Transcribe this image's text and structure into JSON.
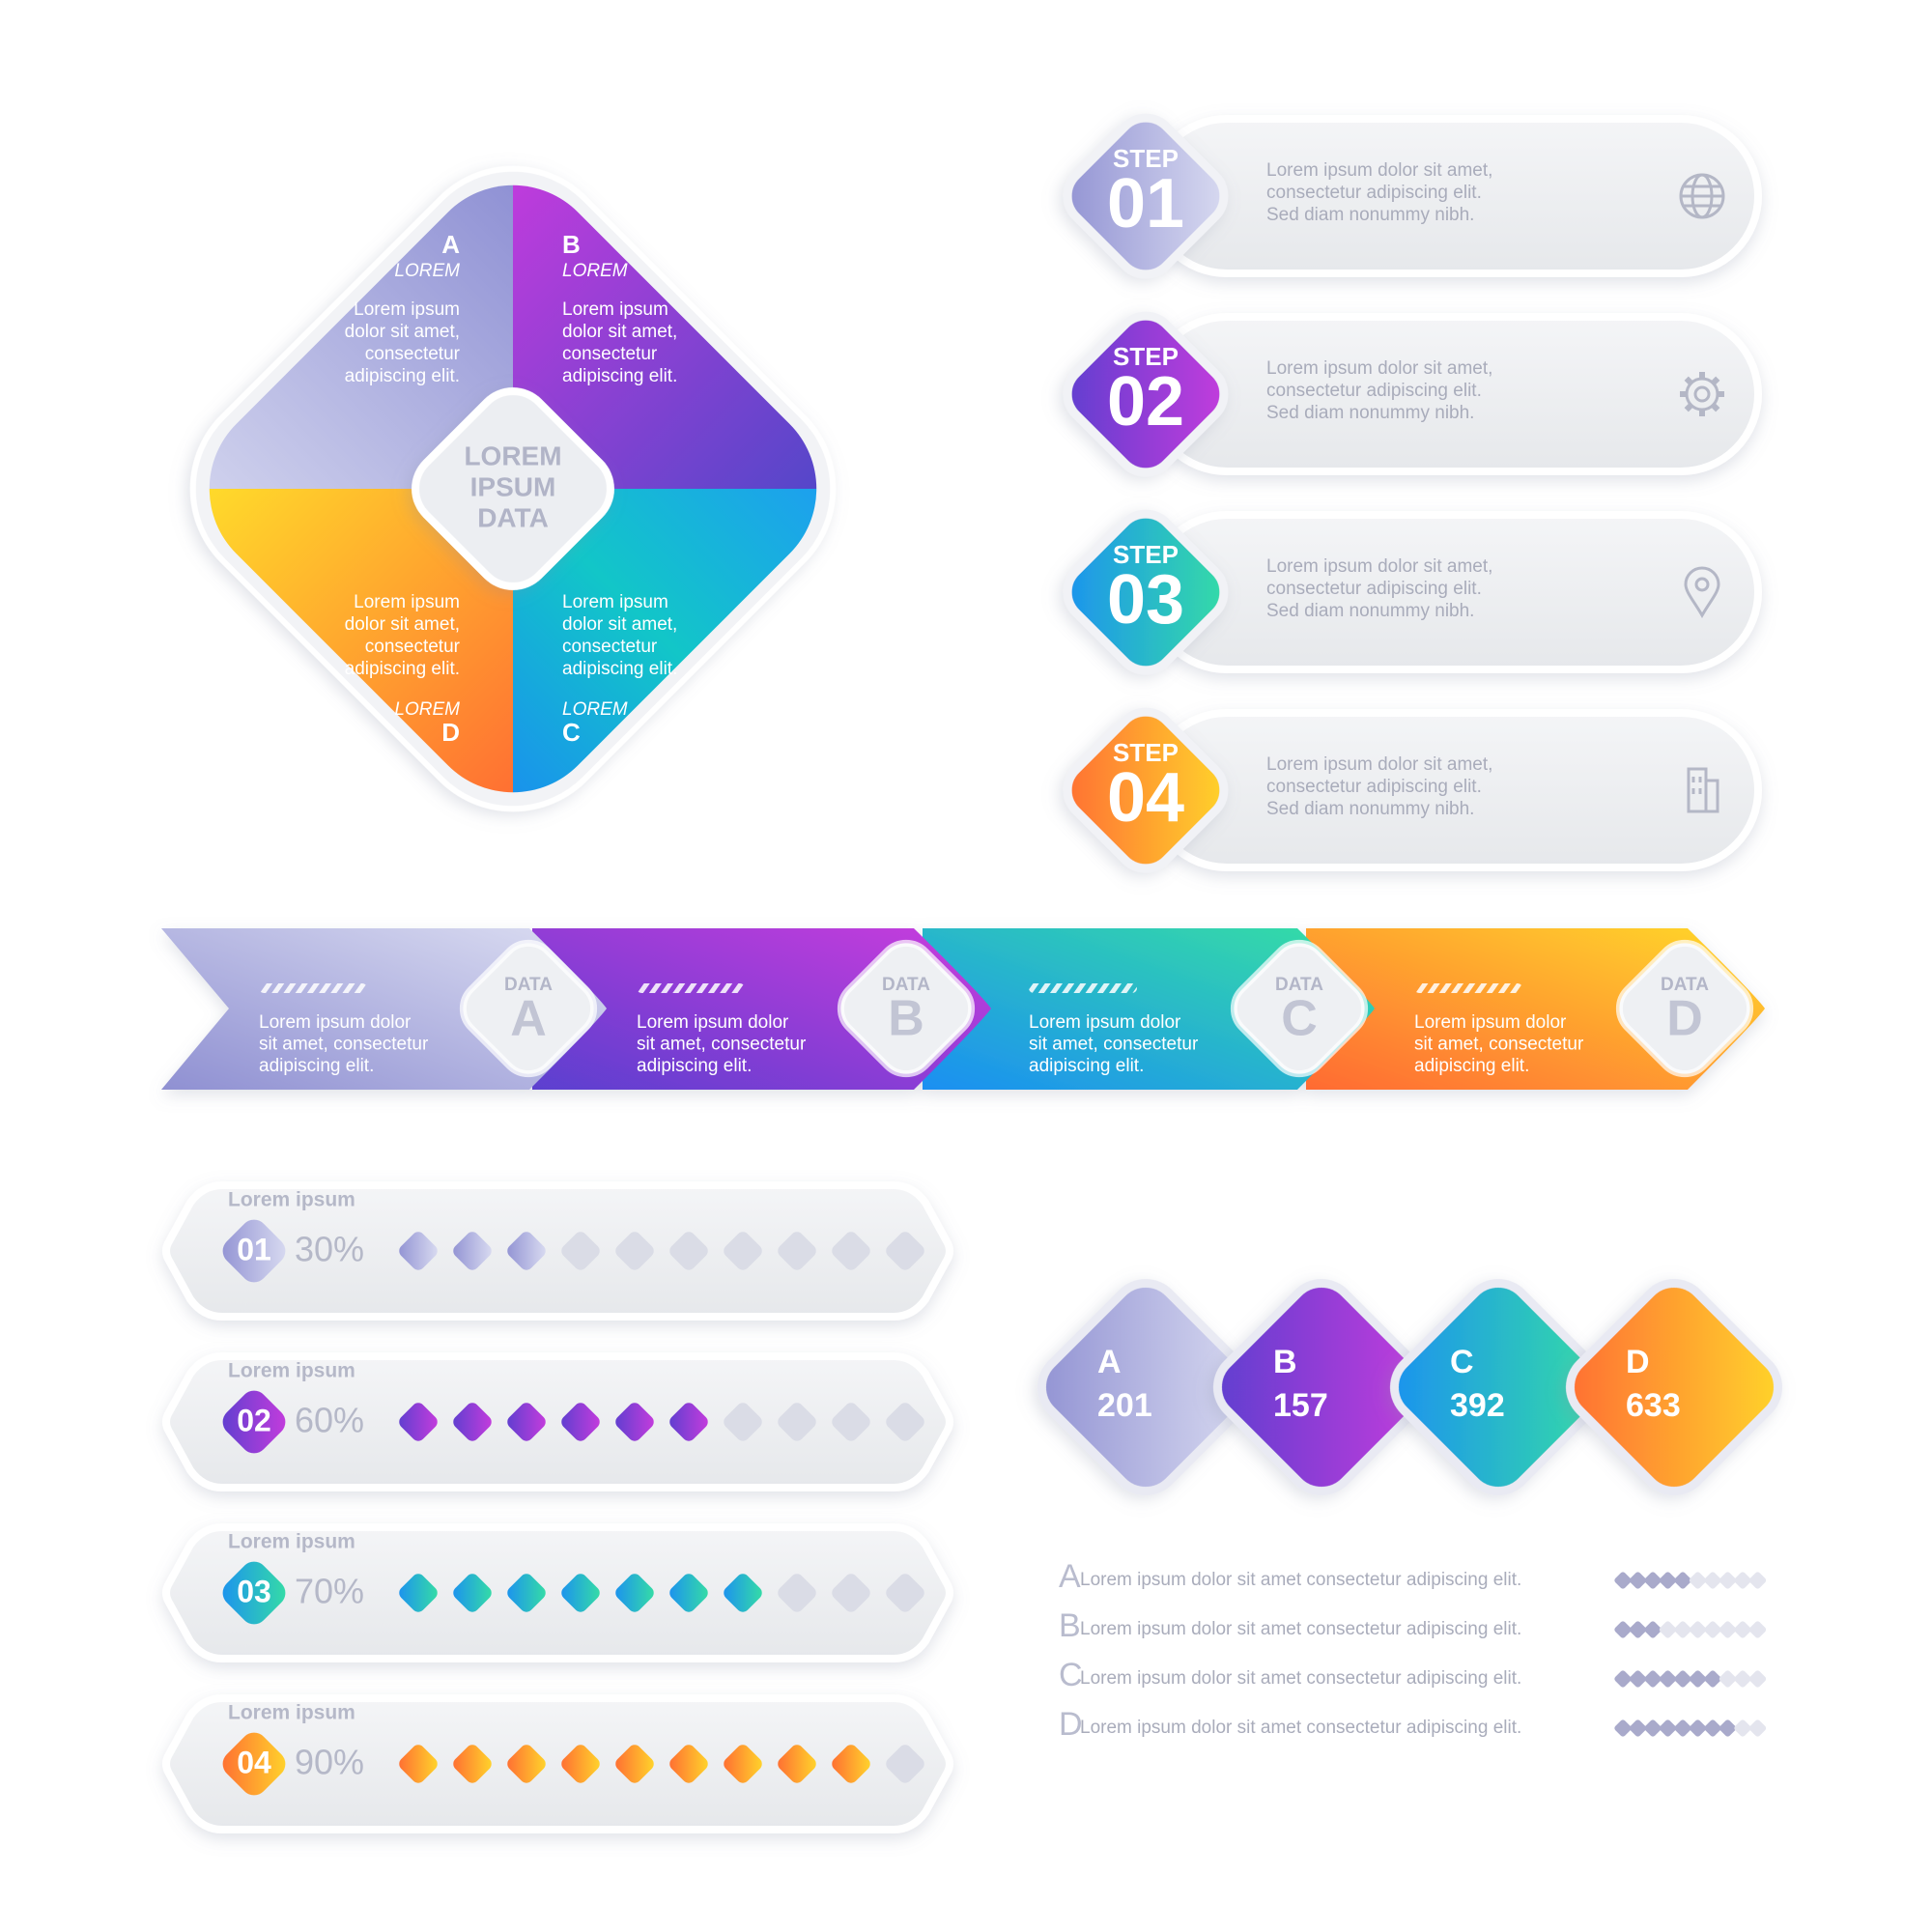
{
  "quadrant_chart": {
    "center_label_lines": [
      "LOREM",
      "IPSUM",
      "DATA"
    ],
    "quadrants": [
      {
        "letter": "A",
        "caption": "LOREM",
        "text_lines": [
          "Lorem ipsum",
          "dolor sit amet,",
          "consectetur",
          "adipiscing elit."
        ]
      },
      {
        "letter": "B",
        "caption": "LOREM",
        "text_lines": [
          "Lorem ipsum",
          "dolor sit amet,",
          "consectetur",
          "adipiscing elit."
        ]
      },
      {
        "letter": "C",
        "caption": "LOREM",
        "text_lines": [
          "Lorem ipsum",
          "dolor sit amet,",
          "consectetur",
          "adipiscing elit."
        ]
      },
      {
        "letter": "D",
        "caption": "LOREM",
        "text_lines": [
          "Lorem ipsum",
          "dolor sit amet,",
          "consectetur",
          "adipiscing elit."
        ]
      }
    ]
  },
  "steps": [
    {
      "label": "STEP",
      "number": "01",
      "text_lines": [
        "Lorem ipsum dolor sit amet,",
        "consectetur adipiscing elit.",
        "Sed diam nonummy nibh."
      ]
    },
    {
      "label": "STEP",
      "number": "02",
      "text_lines": [
        "Lorem ipsum dolor sit amet,",
        "consectetur adipiscing elit.",
        "Sed diam nonummy nibh."
      ]
    },
    {
      "label": "STEP",
      "number": "03",
      "text_lines": [
        "Lorem ipsum dolor sit amet,",
        "consectetur adipiscing elit.",
        "Sed diam nonummy nibh."
      ]
    },
    {
      "label": "STEP",
      "number": "04",
      "text_lines": [
        "Lorem ipsum dolor sit amet,",
        "consectetur adipiscing elit.",
        "Sed diam nonummy nibh."
      ]
    }
  ],
  "banner": [
    {
      "tag": "DATA",
      "letter": "A",
      "text_lines": [
        "Lorem ipsum dolor",
        "sit amet, consectetur",
        "adipiscing elit."
      ]
    },
    {
      "tag": "DATA",
      "letter": "B",
      "text_lines": [
        "Lorem ipsum dolor",
        "sit amet, consectetur",
        "adipiscing elit."
      ]
    },
    {
      "tag": "DATA",
      "letter": "C",
      "text_lines": [
        "Lorem ipsum dolor",
        "sit amet, consectetur",
        "adipiscing elit."
      ]
    },
    {
      "tag": "DATA",
      "letter": "D",
      "text_lines": [
        "Lorem ipsum dolor",
        "sit amet, consectetur",
        "adipiscing elit."
      ]
    }
  ],
  "progress_rows": [
    {
      "label": "Lorem ipsum",
      "number": "01",
      "value": 30,
      "value_label": "30%"
    },
    {
      "label": "Lorem ipsum",
      "number": "02",
      "value": 60,
      "value_label": "60%"
    },
    {
      "label": "Lorem ipsum",
      "number": "03",
      "value": 70,
      "value_label": "70%"
    },
    {
      "label": "Lorem ipsum",
      "number": "04",
      "value": 90,
      "value_label": "90%"
    }
  ],
  "totals": [
    {
      "letter": "A",
      "value": 201
    },
    {
      "letter": "B",
      "value": 157
    },
    {
      "letter": "C",
      "value": 392
    },
    {
      "letter": "D",
      "value": 633
    }
  ],
  "legend": [
    {
      "letter": "A",
      "text": "Lorem ipsum dolor sit amet consectetur adipiscing elit.",
      "level": 5
    },
    {
      "letter": "B",
      "text": "Lorem ipsum dolor sit amet consectetur adipiscing elit.",
      "level": 3
    },
    {
      "letter": "C",
      "text": "Lorem ipsum dolor sit amet consectetur adipiscing elit.",
      "level": 7
    },
    {
      "letter": "D",
      "text": "Lorem ipsum dolor sit amet consectetur adipiscing elit.",
      "level": 8
    }
  ]
}
